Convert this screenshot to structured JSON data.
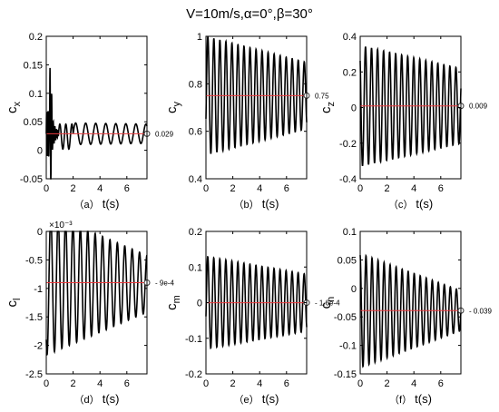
{
  "figure": {
    "title": "V=10m/s,α=0°,β=30°"
  },
  "colors": {
    "signal": "#000000",
    "mean_line": "#e8393d",
    "axis": "#000000"
  },
  "chart_data": [
    {
      "type": "line",
      "panel": "(a)",
      "xlabel": "t(s)",
      "ylabel": "c",
      "ylabel_sub": "x",
      "xlim": [
        0,
        7.5
      ],
      "ylim": [
        -0.05,
        0.2
      ],
      "xticks": [
        "0",
        "2",
        "4",
        "6"
      ],
      "yticks": [
        "-0.05",
        "0",
        "0.05",
        "0.1",
        "0.15",
        "0.2"
      ],
      "mean": 0.029,
      "mean_label": "0.029",
      "series_desc": "initial transient spikes to ~0.16 near t=0.3s, settles to oscillation 0.015–0.05 with period ~0.75s"
    },
    {
      "type": "line",
      "panel": "(b)",
      "xlabel": "t(s)",
      "ylabel": "c",
      "ylabel_sub": "y",
      "xlim": [
        0,
        7.5
      ],
      "ylim": [
        0.4,
        1.0
      ],
      "xticks": [
        "0",
        "2",
        "4",
        "6"
      ],
      "yticks": [
        "0.4",
        "0.6",
        "0.8",
        "1"
      ],
      "mean": 0.75,
      "mean_label": "0.75",
      "series_desc": "oscillation about 0.75 with period ~0.45s, amplitude decaying from ~0.24 to ~0.14"
    },
    {
      "type": "line",
      "panel": "(c)",
      "xlabel": "t(s)",
      "ylabel": "c",
      "ylabel_sub": "z",
      "xlim": [
        0,
        7.5
      ],
      "ylim": [
        -0.4,
        0.4
      ],
      "xticks": [
        "0",
        "2",
        "4",
        "6"
      ],
      "yticks": [
        "-0.4",
        "-0.2",
        "0",
        "0.2",
        "0.4"
      ],
      "mean": 0.009,
      "mean_label": "0.009",
      "series_desc": "oscillation about 0.009 with period ~0.45s, amplitude decaying from ~0.34 to ~0.22"
    },
    {
      "type": "line",
      "panel": "(d)",
      "xlabel": "t(s)",
      "ylabel": "c",
      "ylabel_sub": "l",
      "xlim": [
        0,
        7.5
      ],
      "ylim": [
        -2.5,
        0
      ],
      "scale_label": "×10⁻³",
      "xticks": [
        "0",
        "2",
        "4",
        "6"
      ],
      "yticks": [
        "-2.5",
        "-2",
        "-1.5",
        "-1",
        "-0.5",
        "0"
      ],
      "mean": -0.9,
      "mean_label": "- 9e-4",
      "series_desc": "oscillation about -0.9e-3 with period ~0.55s, amplitude decaying from ~1.2e-3 to ~0.5e-3"
    },
    {
      "type": "line",
      "panel": "(e)",
      "xlabel": "t(s)",
      "ylabel": "c",
      "ylabel_sub": "m",
      "xlim": [
        0,
        7.5
      ],
      "ylim": [
        -0.2,
        0.2
      ],
      "xticks": [
        "0",
        "2",
        "4",
        "6"
      ],
      "yticks": [
        "-0.2",
        "-0.1",
        "0",
        "0.1",
        "0.2"
      ],
      "mean": -0.00016,
      "mean_label": "- 1.6e-4",
      "series_desc": "oscillation about 0 with period ~0.45s, amplitude decaying from ~0.13 to ~0.08"
    },
    {
      "type": "line",
      "panel": "(f)",
      "xlabel": "t(s)",
      "ylabel": "c",
      "ylabel_sub": "n",
      "xlim": [
        0,
        7.5
      ],
      "ylim": [
        -0.15,
        0.1
      ],
      "xticks": [
        "0",
        "2",
        "4",
        "6"
      ],
      "yticks": [
        "-0.15",
        "-0.1",
        "-0.05",
        "0",
        "0.05",
        "0.1"
      ],
      "mean": -0.039,
      "mean_label": "- 0.039",
      "series_desc": "oscillation about -0.039 with period ~0.45s, amplitude decaying from ~0.10 to ~0.035"
    }
  ]
}
